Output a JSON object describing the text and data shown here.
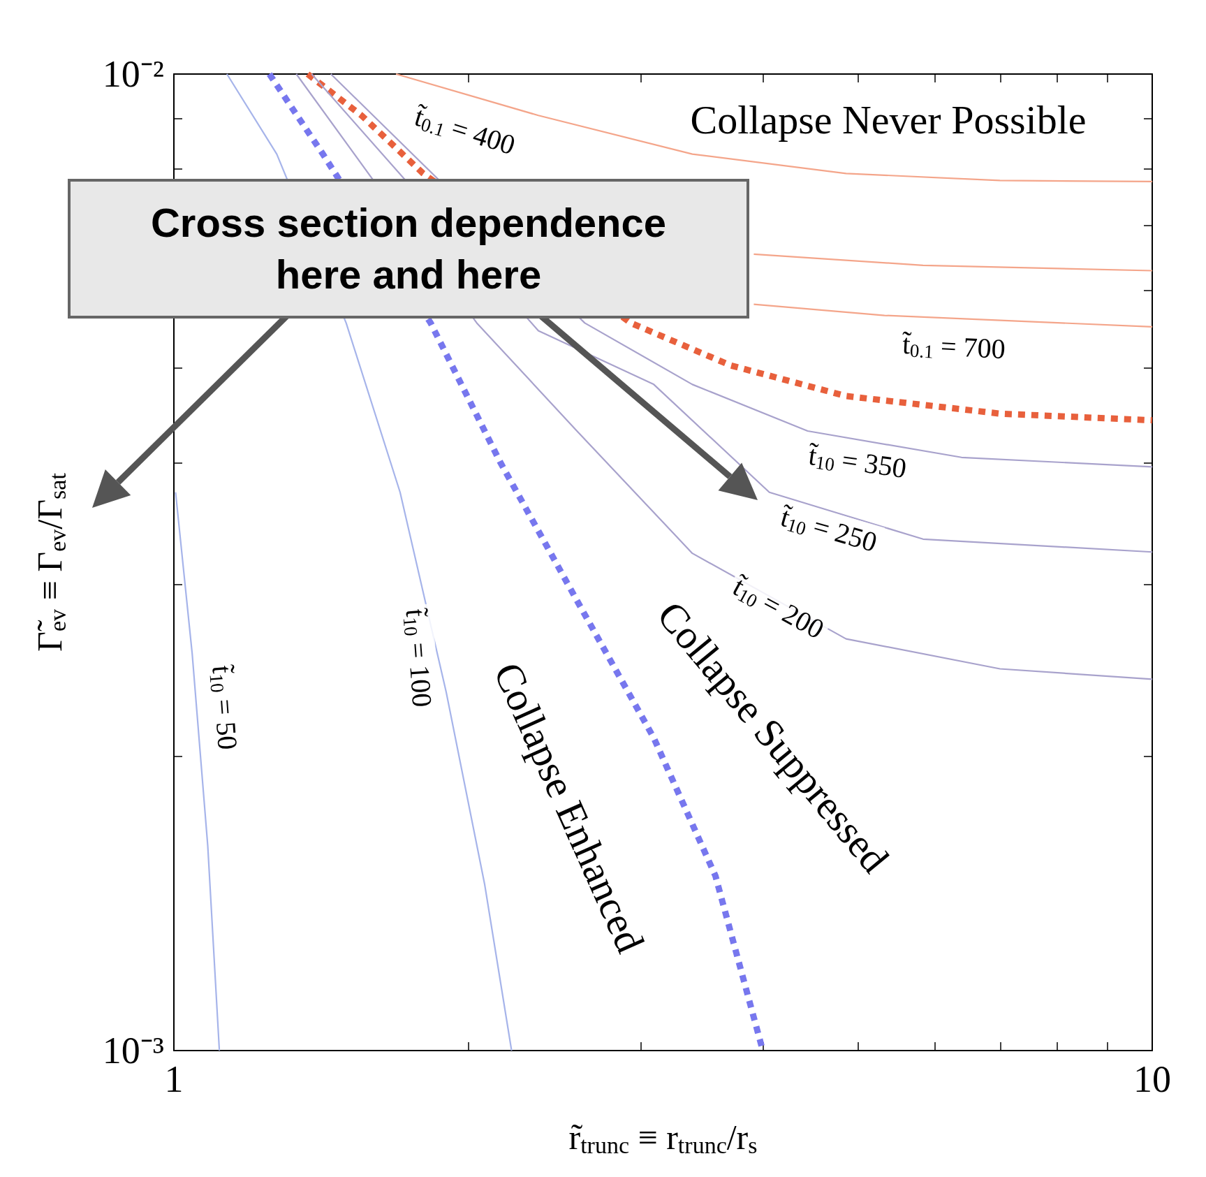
{
  "chart_data": {
    "type": "line",
    "xlabel": "r̃$_{trunc}$ ≡ r$_{trunc}$/r$_{s}$",
    "ylabel": "Γ̃$_{ev}$ ≡ Γ$_{ev}$/Γ$_{sat}$",
    "log": "xy",
    "grid": false,
    "marker": "none",
    "xlim": [
      1,
      10
    ],
    "xticks": [
      1,
      {
        "value": 2,
        "label": null
      },
      {
        "value": 3,
        "label": null
      },
      {
        "value": 4,
        "label": null
      },
      {
        "value": 5,
        "label": null
      },
      {
        "value": 6,
        "label": null
      },
      {
        "value": 7,
        "label": null
      },
      {
        "value": 8,
        "label": null
      },
      {
        "value": 9,
        "label": null
      },
      10
    ],
    "ylim": [
      0.001,
      0.01
    ],
    "yticks": [
      {
        "value": 0.001,
        "label": "10⁻³"
      },
      {
        "value": 0.002,
        "label": null
      },
      {
        "value": 0.003,
        "label": null
      },
      {
        "value": 0.004,
        "label": null
      },
      {
        "value": 0.005,
        "label": null
      },
      {
        "value": 0.006,
        "label": null
      },
      {
        "value": 0.007,
        "label": null
      },
      {
        "value": 0.008,
        "label": null
      },
      {
        "value": 0.009,
        "label": null
      },
      {
        "value": 0.01,
        "label": "10⁻²"
      }
    ],
    "series": [
      {
        "color": "#f4a58a",
        "line_style": "solid",
        "x": [
          1.687,
          2.358,
          3.388,
          4.865,
          6.988,
          10
        ],
        "values": [
          0.01,
          0.00907,
          0.00828,
          0.00791,
          0.00778,
          0.00776
        ]
      },
      {
        "color": "#f4a58a",
        "line_style": "solid",
        "x": [
          3.915,
          5.831,
          10
        ],
        "values": [
          0.00654,
          0.00637,
          0.00629
        ]
      },
      {
        "color": "#f4a58a",
        "line_style": "solid",
        "x": [
          3.915,
          5.325,
          10
        ],
        "values": [
          0.00581,
          0.00566,
          0.00551
        ]
      },
      {
        "color": "#e8603c",
        "line_style": "dotted",
        "x": [
          1.37,
          1.555,
          1.798,
          2.931,
          3.709,
          4.865,
          6.988,
          10
        ],
        "values": [
          0.01,
          0.00907,
          0.00791,
          0.00556,
          0.00503,
          0.00468,
          0.00449,
          0.00442
        ]
      },
      {
        "color": "#7777ee",
        "line_style": "dotted",
        "x": [
          1.252,
          1.42,
          1.83,
          2.154,
          2.582,
          3.094,
          3.577,
          3.988
        ],
        "values": [
          0.01,
          0.00828,
          0.00556,
          0.00401,
          0.00289,
          0.00209,
          0.00151,
          0.00101
        ]
      },
      {
        "color": "#a6b4ea",
        "line_style": "solid",
        "x": [
          1.004,
          1.044,
          1.083,
          1.113
        ],
        "values": [
          0.00373,
          0.00255,
          0.00162,
          0.001
        ]
      },
      {
        "color": "#a6b4ea",
        "line_style": "solid",
        "x": [
          1.133,
          1.274,
          1.5,
          1.703,
          1.898,
          2.078,
          2.214
        ],
        "values": [
          0.01,
          0.00828,
          0.00556,
          0.00373,
          0.00233,
          0.00148,
          0.001
        ]
      },
      {
        "color": "#a8a2cc",
        "line_style": "solid",
        "x": [
          1.334,
          2.04,
          2.582,
          3.388,
          4.865,
          6.988,
          10
        ],
        "values": [
          0.01,
          0.00556,
          0.00431,
          0.00323,
          0.00264,
          0.00246,
          0.0024
        ]
      },
      {
        "color": "#a8a2cc",
        "line_style": "solid",
        "x": [
          1.383,
          2.358,
          3.094,
          4.061,
          5.831,
          10
        ],
        "values": [
          0.01,
          0.00546,
          0.00481,
          0.00373,
          0.00334,
          0.00324
        ]
      },
      {
        "color": "#a8a2cc",
        "line_style": "solid",
        "x": [
          1.447,
          2.63,
          3.388,
          4.444,
          6.383,
          10
        ],
        "values": [
          0.01,
          0.00556,
          0.00481,
          0.00431,
          0.00405,
          0.00396
        ]
      }
    ],
    "annotations": [
      "Collapse Never Possible",
      "t̃$_{0.1}$ = 400",
      "t̃$_{0.1}$ = 700",
      "t̃$_{10}$ = 350",
      "t̃$_{10}$ = 250",
      "t̃$_{10}$ = 200",
      "t̃$_{10}$ = 100",
      "t̃$_{10}$ = 50",
      "Collapse Enhanced",
      "Collapse Suppressed",
      "Cross section dependence here and here"
    ]
  }
}
